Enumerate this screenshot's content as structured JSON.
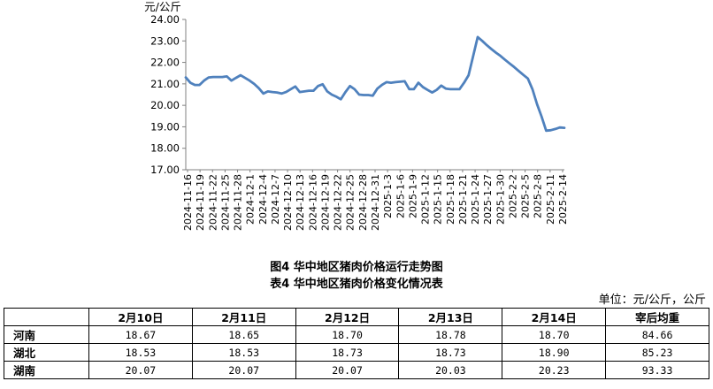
{
  "chart_data": {
    "type": "line",
    "ylabel": "元/公斤",
    "ylim": [
      17.0,
      24.0
    ],
    "yticks": [
      "17.00",
      "18.00",
      "19.00",
      "20.00",
      "21.00",
      "22.00",
      "23.00",
      "24.00"
    ],
    "tick_labels": [
      "2024-11-16",
      "2024-11-19",
      "2024-11-22",
      "2024-11-25",
      "2024-11-28",
      "2024-12-1",
      "2024-12-4",
      "2024-12-7",
      "2024-12-10",
      "2024-12-13",
      "2024-12-16",
      "2024-12-19",
      "2024-12-22",
      "2024-12-25",
      "2024-12-28",
      "2024-12-31",
      "2025-1-3",
      "2025-1-6",
      "2025-1-9",
      "2025-1-12",
      "2025-1-15",
      "2025-1-18",
      "2025-1-21",
      "2025-1-24",
      "2025-1-27",
      "2025-1-30",
      "2025-2-2",
      "2025-2-5",
      "2025-2-8",
      "2025-2-11",
      "2025-2-14"
    ],
    "series": [
      {
        "color": "#4f81bd",
        "values": [
          21.3,
          21.05,
          20.95,
          20.95,
          21.15,
          21.3,
          21.32,
          21.32,
          21.32,
          21.35,
          21.15,
          21.28,
          21.4,
          21.28,
          21.15,
          21.0,
          20.8,
          20.55,
          20.65,
          20.62,
          20.6,
          20.55,
          20.62,
          20.75,
          20.88,
          20.62,
          20.65,
          20.68,
          20.68,
          20.9,
          20.98,
          20.65,
          20.5,
          20.4,
          20.28,
          20.62,
          20.9,
          20.75,
          20.5,
          20.48,
          20.48,
          20.45,
          20.78,
          20.95,
          21.08,
          21.05,
          21.08,
          21.1,
          21.12,
          20.75,
          20.75,
          21.05,
          20.85,
          20.72,
          20.6,
          20.72,
          20.92,
          20.78,
          20.75,
          20.75,
          20.75,
          21.05,
          21.4,
          22.3,
          23.18,
          23.0,
          22.8,
          22.62,
          22.45,
          22.3,
          22.12,
          21.95,
          21.78,
          21.6,
          21.42,
          21.25,
          20.75,
          20.05,
          19.48,
          18.82,
          18.84,
          18.9,
          18.97,
          18.95
        ]
      }
    ]
  },
  "captions": {
    "figure": "图4  华中地区猪肉价格运行走势图",
    "table": "表4  华中地区猪肉价格变化情况表"
  },
  "unit_note": "单位：元/公斤，公斤",
  "table": {
    "headers": [
      "",
      "2月10日",
      "2月11日",
      "2月12日",
      "2月13日",
      "2月14日",
      "宰后均重"
    ],
    "rows": [
      {
        "name": "河南",
        "cells": [
          "18.67",
          "18.65",
          "18.70",
          "18.78",
          "18.70",
          "84.66"
        ]
      },
      {
        "name": "湖北",
        "cells": [
          "18.53",
          "18.53",
          "18.73",
          "18.73",
          "18.90",
          "85.23"
        ]
      },
      {
        "name": "湖南",
        "cells": [
          "20.07",
          "20.07",
          "20.07",
          "20.03",
          "20.23",
          "93.33"
        ]
      }
    ]
  }
}
